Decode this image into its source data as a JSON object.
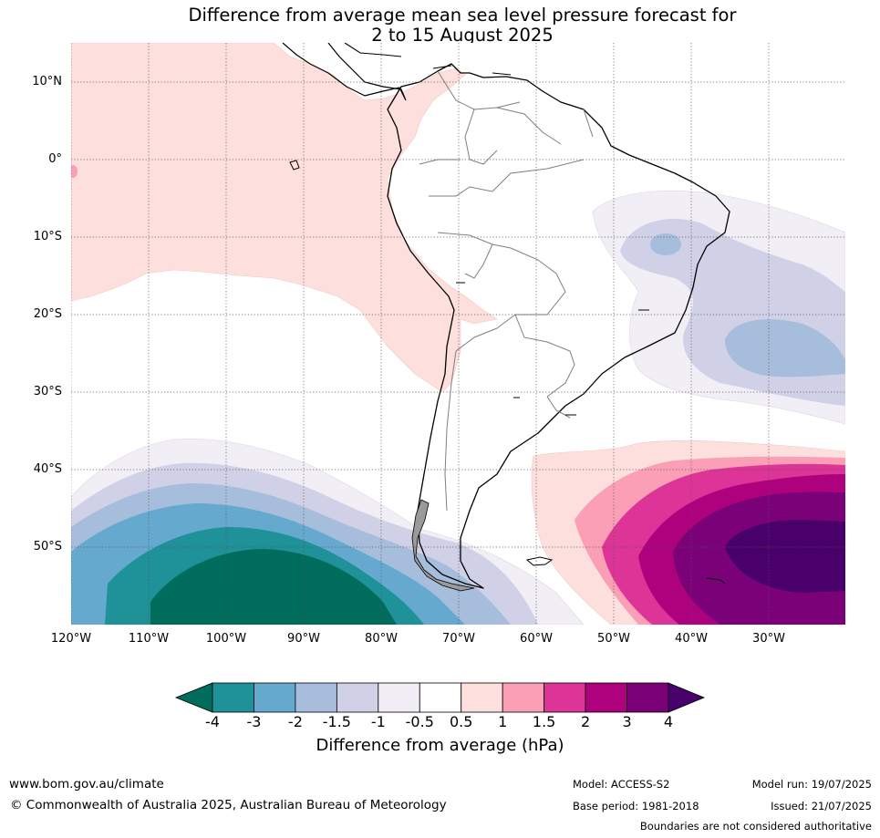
{
  "title": {
    "line1": "Difference from average mean sea level pressure forecast for",
    "line2": "2 to 15 August 2025"
  },
  "map": {
    "projection": "lat-lon",
    "lon_range": [
      -120,
      -20
    ],
    "lat_range": [
      -60,
      15
    ],
    "grid": true,
    "lat_labels": [
      "10°N",
      "0°",
      "10°S",
      "20°S",
      "30°S",
      "40°S",
      "50°S"
    ],
    "lon_labels": [
      "120°W",
      "110°W",
      "100°W",
      "90°W",
      "80°W",
      "70°W",
      "60°W",
      "50°W",
      "40°W",
      "30°W"
    ],
    "anomaly_regions": [
      {
        "category": "0.5 to 1",
        "description": "eastern tropical Pacific and west coast of South America"
      },
      {
        "category": "-4 and below",
        "description": "southeast Pacific core near 95°W 55°S"
      },
      {
        "category": "4 and above",
        "description": "South Atlantic core near 30°W 52°S"
      },
      {
        "category": "-2 to -1.5",
        "description": "off southeast Brazil near 35°W 25°S"
      }
    ]
  },
  "colorbar": {
    "ticks": [
      "-4",
      "-3",
      "-2",
      "-1.5",
      "-1",
      "-0.5",
      "0.5",
      "1",
      "1.5",
      "2",
      "3",
      "4"
    ],
    "colors": [
      "#006d5c",
      "#1f9198",
      "#66a9cf",
      "#a6bddb",
      "#d0d1e6",
      "#f1eef6",
      "#ffffff",
      "#fde0dd",
      "#fa9fb5",
      "#dd3497",
      "#ae017e",
      "#7a0177",
      "#49006a"
    ],
    "label": "Difference from average (hPa)"
  },
  "footer": {
    "url": "www.bom.gov.au/climate",
    "copyright": "© Commonwealth of Australia 2025, Australian Bureau of Meteorology",
    "model": "Model: ACCESS-S2",
    "model_run": "Model run: 19/07/2025",
    "base_period": "Base period: 1981-2018",
    "issued": "Issued: 21/07/2025",
    "disclaimer": "Boundaries are not considered authoritative"
  }
}
